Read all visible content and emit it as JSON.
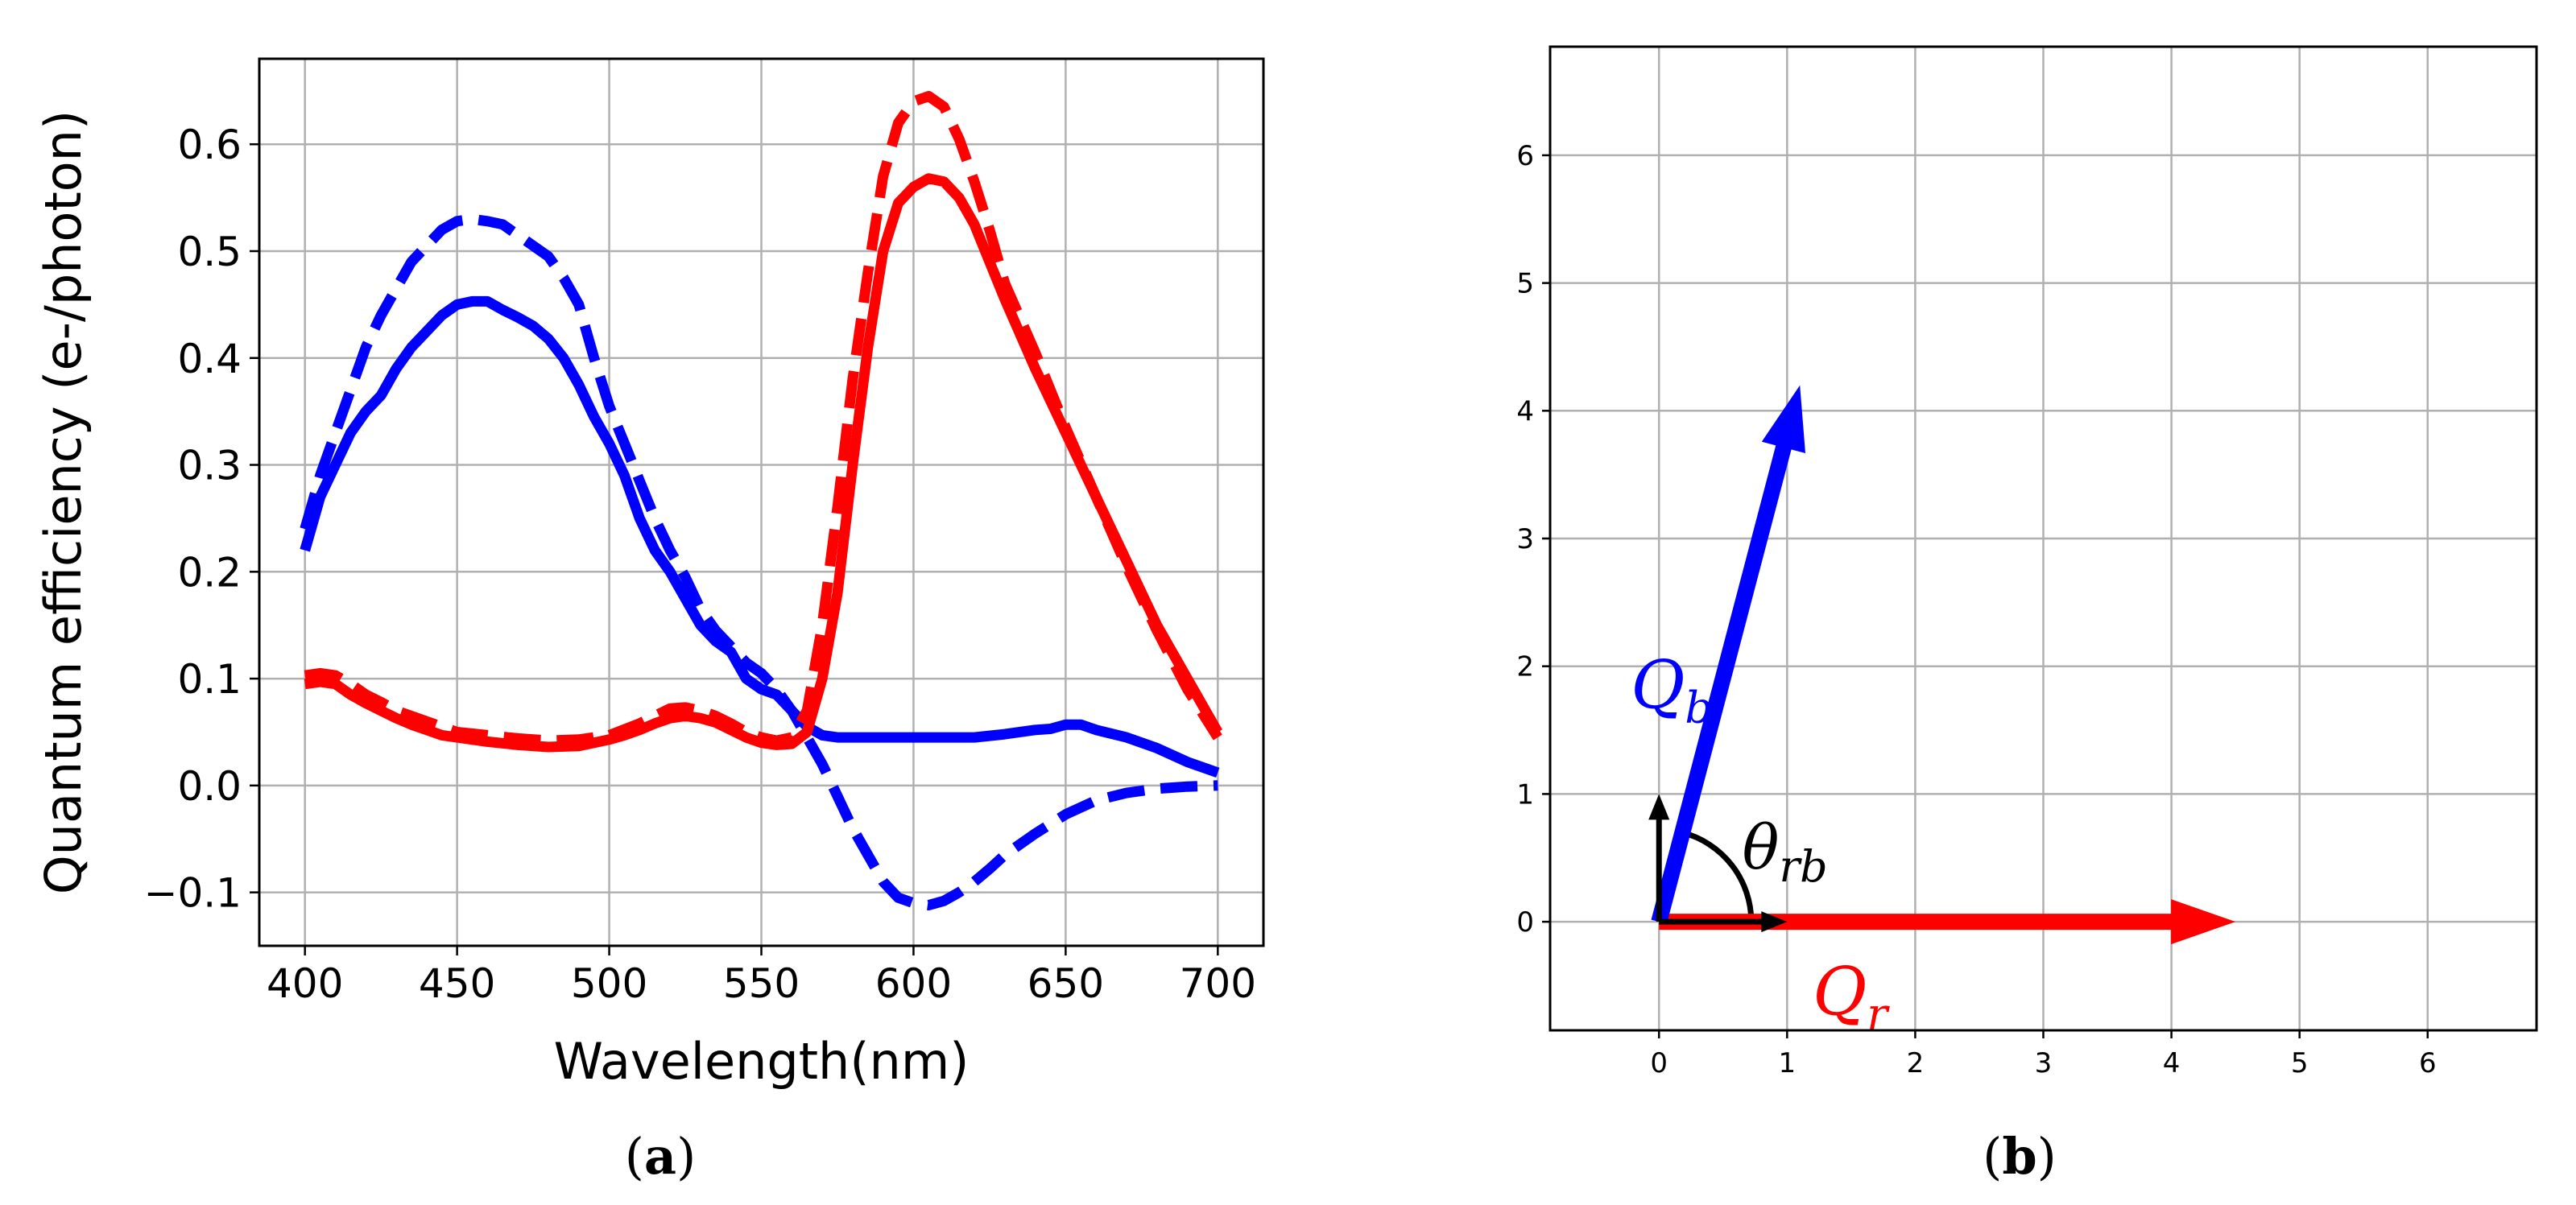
{
  "chart_data": [
    {
      "type": "line",
      "panel": "(a)",
      "caption_letter": "a",
      "xlabel": "Wavelength(nm)",
      "ylabel": "Quantum efficiency (e-/photon)",
      "xlim": [
        385,
        715
      ],
      "ylim": [
        -0.15,
        0.68
      ],
      "xticks": [
        400,
        450,
        500,
        550,
        600,
        650,
        700
      ],
      "yticks": [
        -0.1,
        0.0,
        0.1,
        0.2,
        0.3,
        0.4,
        0.5,
        0.6
      ],
      "ytick_labels": [
        "−0.1",
        "0.0",
        "0.1",
        "0.2",
        "0.3",
        "0.4",
        "0.5",
        "0.6"
      ],
      "grid": true,
      "series": [
        {
          "name": "blue solid",
          "color": "#0000ff",
          "dash": "solid",
          "x": [
            400,
            405,
            410,
            415,
            420,
            425,
            430,
            435,
            440,
            445,
            450,
            455,
            460,
            465,
            470,
            475,
            480,
            485,
            490,
            495,
            500,
            505,
            510,
            515,
            520,
            525,
            530,
            535,
            540,
            545,
            550,
            555,
            560,
            565,
            570,
            575,
            580,
            590,
            600,
            610,
            620,
            630,
            640,
            645,
            650,
            655,
            660,
            670,
            680,
            690,
            700
          ],
          "y": [
            0.22,
            0.27,
            0.3,
            0.33,
            0.35,
            0.365,
            0.39,
            0.41,
            0.425,
            0.44,
            0.45,
            0.453,
            0.453,
            0.445,
            0.438,
            0.43,
            0.418,
            0.4,
            0.375,
            0.345,
            0.32,
            0.29,
            0.25,
            0.22,
            0.2,
            0.175,
            0.15,
            0.135,
            0.125,
            0.1,
            0.09,
            0.085,
            0.07,
            0.055,
            0.047,
            0.045,
            0.045,
            0.045,
            0.045,
            0.045,
            0.045,
            0.048,
            0.052,
            0.053,
            0.057,
            0.057,
            0.052,
            0.045,
            0.035,
            0.022,
            0.012
          ]
        },
        {
          "name": "blue dashed",
          "color": "#0000ff",
          "dash": "dashed",
          "x": [
            400,
            405,
            410,
            415,
            420,
            425,
            430,
            435,
            440,
            445,
            450,
            455,
            460,
            465,
            470,
            475,
            480,
            485,
            490,
            495,
            500,
            505,
            510,
            515,
            520,
            525,
            530,
            535,
            540,
            545,
            550,
            555,
            560,
            565,
            570,
            575,
            580,
            585,
            590,
            595,
            600,
            605,
            610,
            615,
            620,
            625,
            630,
            640,
            650,
            660,
            670,
            680,
            690,
            700
          ],
          "y": [
            0.24,
            0.29,
            0.33,
            0.37,
            0.41,
            0.44,
            0.465,
            0.49,
            0.505,
            0.52,
            0.528,
            0.53,
            0.528,
            0.525,
            0.515,
            0.505,
            0.495,
            0.475,
            0.45,
            0.4,
            0.355,
            0.32,
            0.285,
            0.25,
            0.22,
            0.195,
            0.165,
            0.145,
            0.13,
            0.115,
            0.105,
            0.09,
            0.07,
            0.045,
            0.02,
            -0.01,
            -0.04,
            -0.065,
            -0.09,
            -0.105,
            -0.11,
            -0.112,
            -0.108,
            -0.1,
            -0.09,
            -0.078,
            -0.065,
            -0.045,
            -0.027,
            -0.014,
            -0.007,
            -0.003,
            -0.001,
            0.0
          ]
        },
        {
          "name": "red solid",
          "color": "#ff0000",
          "dash": "solid",
          "x": [
            400,
            405,
            410,
            415,
            420,
            425,
            430,
            435,
            440,
            445,
            450,
            460,
            470,
            480,
            490,
            500,
            505,
            510,
            515,
            520,
            525,
            530,
            535,
            540,
            545,
            550,
            555,
            560,
            565,
            570,
            575,
            580,
            585,
            590,
            595,
            600,
            605,
            610,
            615,
            620,
            625,
            630,
            640,
            650,
            660,
            670,
            680,
            690,
            700
          ],
          "y": [
            0.095,
            0.097,
            0.095,
            0.085,
            0.077,
            0.07,
            0.063,
            0.057,
            0.052,
            0.047,
            0.045,
            0.041,
            0.038,
            0.036,
            0.037,
            0.043,
            0.047,
            0.052,
            0.058,
            0.063,
            0.065,
            0.063,
            0.059,
            0.052,
            0.045,
            0.04,
            0.038,
            0.039,
            0.05,
            0.1,
            0.18,
            0.3,
            0.41,
            0.5,
            0.545,
            0.56,
            0.568,
            0.565,
            0.55,
            0.525,
            0.49,
            0.455,
            0.39,
            0.33,
            0.27,
            0.21,
            0.15,
            0.1,
            0.05
          ]
        },
        {
          "name": "red dashed",
          "color": "#ff0000",
          "dash": "dashed",
          "x": [
            400,
            405,
            410,
            415,
            420,
            425,
            430,
            440,
            450,
            460,
            470,
            480,
            490,
            500,
            510,
            515,
            520,
            525,
            530,
            535,
            540,
            545,
            550,
            555,
            560,
            565,
            570,
            575,
            580,
            585,
            590,
            595,
            600,
            605,
            610,
            615,
            620,
            625,
            630,
            640,
            650,
            660,
            670,
            680,
            690,
            700
          ],
          "y": [
            0.103,
            0.105,
            0.103,
            0.095,
            0.085,
            0.078,
            0.07,
            0.06,
            0.05,
            0.047,
            0.044,
            0.042,
            0.043,
            0.047,
            0.058,
            0.065,
            0.072,
            0.073,
            0.07,
            0.065,
            0.058,
            0.05,
            0.045,
            0.042,
            0.045,
            0.07,
            0.15,
            0.26,
            0.38,
            0.48,
            0.57,
            0.62,
            0.64,
            0.645,
            0.635,
            0.605,
            0.565,
            0.52,
            0.47,
            0.405,
            0.335,
            0.27,
            0.205,
            0.145,
            0.09,
            0.045
          ]
        }
      ]
    },
    {
      "type": "vector",
      "panel": "(b)",
      "caption_letter": "b",
      "xlim": [
        -0.85,
        6.85
      ],
      "ylim": [
        -0.85,
        6.85
      ],
      "xticks": [
        0,
        1,
        2,
        3,
        4,
        5,
        6
      ],
      "yticks": [
        0,
        1,
        2,
        3,
        4,
        5,
        6
      ],
      "grid": true,
      "vectors": [
        {
          "name": "Q_r",
          "label_main": "Q",
          "label_sub": "r",
          "color": "#ff0000",
          "from": [
            0,
            0
          ],
          "to": [
            4.5,
            0
          ],
          "label_at": [
            1.2,
            -0.55
          ],
          "width": "thick"
        },
        {
          "name": "Q_b",
          "label_main": "Q",
          "label_sub": "b",
          "color": "#0000ff",
          "from": [
            0,
            0
          ],
          "to": [
            1.1,
            4.2
          ],
          "label_at": [
            -0.22,
            1.85
          ],
          "width": "thick"
        },
        {
          "name": "unit x",
          "color": "#000000",
          "from": [
            0,
            0
          ],
          "to": [
            1.0,
            0
          ],
          "width": "thin"
        },
        {
          "name": "unit y",
          "color": "#000000",
          "from": [
            0,
            0
          ],
          "to": [
            0,
            1.0
          ],
          "width": "thin"
        }
      ],
      "angle_arc": {
        "label_main": "θ",
        "label_sub": "rb",
        "color": "#000000",
        "radius": 0.72,
        "from_deg": 0,
        "to_deg": 75.3,
        "label_at": [
          0.65,
          0.58
        ]
      }
    }
  ]
}
